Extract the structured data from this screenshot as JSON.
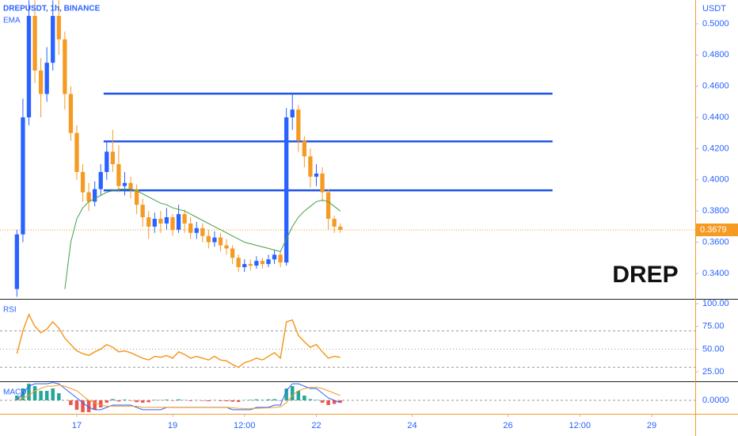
{
  "header": {
    "indicator": "EMA",
    "currency": "USDT"
  },
  "watermark": "DREP",
  "chart_data": [
    {
      "type": "candlestick",
      "title": "DREPUSDT, 1h, BINANCE",
      "x": [
        15.75,
        15.875,
        16,
        16.125,
        16.25,
        16.375,
        16.5,
        16.625,
        16.75,
        16.875,
        17,
        17.125,
        17.25,
        17.375,
        17.5,
        17.625,
        17.75,
        17.875,
        18,
        18.125,
        18.25,
        18.375,
        18.5,
        18.625,
        18.75,
        18.875,
        19,
        19.125,
        19.25,
        19.375,
        19.5,
        19.625,
        19.75,
        19.875,
        20,
        20.125,
        20.25,
        20.375,
        20.5,
        20.625,
        20.75,
        20.875,
        21,
        21.125,
        21.25,
        21.375,
        21.5,
        21.625,
        21.75,
        21.875,
        22,
        22.125,
        22.25,
        22.375,
        22.5
      ],
      "open": [
        0.33,
        0.365,
        0.44,
        0.505,
        0.47,
        0.455,
        0.475,
        0.505,
        0.49,
        0.455,
        0.43,
        0.405,
        0.392,
        0.386,
        0.394,
        0.405,
        0.418,
        0.41,
        0.396,
        0.398,
        0.394,
        0.384,
        0.376,
        0.37,
        0.375,
        0.372,
        0.376,
        0.368,
        0.378,
        0.372,
        0.366,
        0.369,
        0.364,
        0.36,
        0.363,
        0.358,
        0.356,
        0.35,
        0.344,
        0.346,
        0.345,
        0.348,
        0.346,
        0.349,
        0.352,
        0.347,
        0.44,
        0.445,
        0.425,
        0.415,
        0.402,
        0.404,
        0.392,
        0.375,
        0.37
      ],
      "high": [
        0.368,
        0.452,
        0.515,
        0.515,
        0.478,
        0.485,
        0.515,
        0.515,
        0.495,
        0.46,
        0.435,
        0.41,
        0.398,
        0.399,
        0.41,
        0.425,
        0.432,
        0.422,
        0.405,
        0.402,
        0.397,
        0.388,
        0.38,
        0.379,
        0.38,
        0.382,
        0.378,
        0.384,
        0.381,
        0.376,
        0.373,
        0.372,
        0.368,
        0.367,
        0.366,
        0.362,
        0.358,
        0.352,
        0.349,
        0.349,
        0.351,
        0.35,
        0.352,
        0.355,
        0.354,
        0.446,
        0.455,
        0.448,
        0.428,
        0.42,
        0.41,
        0.408,
        0.394,
        0.377,
        0.372
      ],
      "low": [
        0.325,
        0.36,
        0.435,
        0.462,
        0.44,
        0.45,
        0.47,
        0.48,
        0.445,
        0.425,
        0.4,
        0.386,
        0.38,
        0.383,
        0.39,
        0.4,
        0.405,
        0.392,
        0.39,
        0.388,
        0.378,
        0.37,
        0.362,
        0.366,
        0.366,
        0.368,
        0.364,
        0.366,
        0.366,
        0.362,
        0.362,
        0.36,
        0.356,
        0.357,
        0.354,
        0.352,
        0.346,
        0.341,
        0.341,
        0.342,
        0.343,
        0.343,
        0.344,
        0.346,
        0.344,
        0.345,
        0.432,
        0.418,
        0.408,
        0.395,
        0.396,
        0.386,
        0.368,
        0.366,
        0.366
      ],
      "close": [
        0.365,
        0.44,
        0.505,
        0.47,
        0.455,
        0.475,
        0.505,
        0.49,
        0.455,
        0.43,
        0.405,
        0.392,
        0.386,
        0.394,
        0.405,
        0.418,
        0.41,
        0.396,
        0.398,
        0.394,
        0.384,
        0.376,
        0.37,
        0.375,
        0.372,
        0.376,
        0.368,
        0.378,
        0.372,
        0.366,
        0.369,
        0.364,
        0.36,
        0.363,
        0.358,
        0.356,
        0.35,
        0.344,
        0.346,
        0.345,
        0.348,
        0.346,
        0.349,
        0.352,
        0.347,
        0.44,
        0.445,
        0.425,
        0.415,
        0.402,
        0.404,
        0.392,
        0.375,
        0.37,
        0.3679
      ],
      "up_color": "#2962ff",
      "down_color": "#f59a23",
      "series": [
        {
          "name": "EMA",
          "color": "#43a047",
          "values": [
            null,
            null,
            null,
            null,
            null,
            null,
            null,
            null,
            0.33,
            0.36,
            0.375,
            0.382,
            0.386,
            0.388,
            0.39,
            0.392,
            0.393,
            0.394,
            0.394,
            0.394,
            0.393,
            0.391,
            0.389,
            0.387,
            0.385,
            0.384,
            0.382,
            0.381,
            0.38,
            0.378,
            0.376,
            0.374,
            0.372,
            0.37,
            0.368,
            0.366,
            0.364,
            0.362,
            0.36,
            0.359,
            0.358,
            0.357,
            0.356,
            0.355,
            0.354,
            0.362,
            0.37,
            0.376,
            0.38,
            0.383,
            0.386,
            0.387,
            0.386,
            0.383,
            0.38
          ]
        }
      ],
      "levels": [
        {
          "value": 0.4552,
          "x": [
            17.56,
            26.93
          ]
        },
        {
          "value": 0.4246,
          "x": [
            17.56,
            26.93
          ]
        },
        {
          "value": 0.3932,
          "x": [
            17.56,
            26.93
          ]
        }
      ],
      "level_color": "#1e53e5",
      "last_price": 0.3679,
      "last_price_color": "#f59a23",
      "xlim": [
        15.397,
        29.909
      ],
      "xticks": [
        17,
        19,
        {
          "value": 20.5,
          "label": "12:00"
        },
        22,
        24,
        26,
        {
          "value": 27.5,
          "label": "12:00"
        },
        29
      ],
      "ylim": [
        0.3237,
        0.5152
      ],
      "yticks": [
        {
          "value": 0.34,
          "label": "0.3400"
        },
        {
          "value": 0.36,
          "label": "0.3600"
        },
        {
          "value": 0.38,
          "label": "0.3800"
        },
        {
          "value": 0.4,
          "label": "0.4000"
        },
        {
          "value": 0.42,
          "label": "0.4200"
        },
        {
          "value": 0.44,
          "label": "0.4400"
        },
        {
          "value": 0.46,
          "label": "0.4600"
        },
        {
          "value": 0.48,
          "label": "0.4800"
        },
        {
          "value": 0.5,
          "label": "0.5000"
        }
      ]
    },
    {
      "type": "line",
      "title": "RSI",
      "color": "#f59a23",
      "x": [
        15.75,
        15.875,
        16,
        16.125,
        16.25,
        16.375,
        16.5,
        16.625,
        16.75,
        16.875,
        17,
        17.125,
        17.25,
        17.375,
        17.5,
        17.625,
        17.75,
        17.875,
        18,
        18.125,
        18.25,
        18.375,
        18.5,
        18.625,
        18.75,
        18.875,
        19,
        19.125,
        19.25,
        19.375,
        19.5,
        19.625,
        19.75,
        19.875,
        20,
        20.125,
        20.25,
        20.375,
        20.5,
        20.625,
        20.75,
        20.875,
        21,
        21.125,
        21.25,
        21.375,
        21.5,
        21.625,
        21.75,
        21.875,
        22,
        22.125,
        22.25,
        22.375,
        22.5
      ],
      "values": [
        45,
        70,
        88,
        75,
        68,
        72,
        80,
        73,
        62,
        55,
        48,
        45,
        43,
        47,
        50,
        55,
        52,
        47,
        48,
        46,
        43,
        40,
        38,
        42,
        41,
        43,
        40,
        47,
        44,
        40,
        42,
        40,
        38,
        42,
        38,
        37,
        33,
        30,
        35,
        37,
        40,
        38,
        42,
        46,
        40,
        80,
        82,
        65,
        58,
        52,
        55,
        47,
        40,
        42,
        41
      ],
      "bands": [
        30,
        50,
        70
      ],
      "xlim": [
        15.397,
        29.909
      ],
      "ylim": [
        15.4,
        104.4
      ],
      "yticks": [
        {
          "value": 25,
          "label": "25.00"
        },
        {
          "value": 50,
          "label": "50.00"
        },
        {
          "value": 75,
          "label": "75.00"
        },
        {
          "value": 100,
          "label": "100.00"
        }
      ]
    },
    {
      "type": "macd",
      "title": "MACD",
      "x": [
        15.75,
        15.875,
        16,
        16.125,
        16.25,
        16.375,
        16.5,
        16.625,
        16.75,
        16.875,
        17,
        17.125,
        17.25,
        17.375,
        17.5,
        17.625,
        17.75,
        17.875,
        18,
        18.125,
        18.25,
        18.375,
        18.5,
        18.625,
        18.75,
        18.875,
        19,
        19.125,
        19.25,
        19.375,
        19.5,
        19.625,
        19.75,
        19.875,
        20,
        20.125,
        20.25,
        20.375,
        20.5,
        20.625,
        20.75,
        20.875,
        21,
        21.125,
        21.25,
        21.375,
        21.5,
        21.625,
        21.75,
        21.875,
        22,
        22.125,
        22.25,
        22.375,
        22.5
      ],
      "histogram": [
        0.002,
        0.005,
        0.007,
        0.006,
        0.004,
        0.004,
        0.005,
        0.003,
        0.0,
        -0.002,
        -0.004,
        -0.005,
        -0.005,
        -0.004,
        -0.003,
        -0.001,
        0.0005,
        -0.0005,
        0.0003,
        -0.0002,
        -0.0008,
        -0.001,
        -0.0008,
        0.0002,
        0.0001,
        0.0003,
        -0.0002,
        0.0004,
        0.0001,
        -0.0003,
        0.0001,
        -0.0002,
        -0.0004,
        0.0001,
        -0.0003,
        -0.0004,
        -0.0006,
        -0.0007,
        0.0001,
        0.0002,
        0.0004,
        0.0002,
        0.0004,
        0.0005,
        -0.0002,
        0.005,
        0.006,
        0.004,
        0.002,
        0.0005,
        0.0002,
        -0.001,
        -0.002,
        -0.0015,
        -0.001
      ],
      "histogram_colors": [
        "#26a69a",
        "#ef5350"
      ],
      "macd_line": [
        0.0,
        0.003,
        0.006,
        0.007,
        0.007,
        0.007,
        0.0075,
        0.007,
        0.005,
        0.003,
        0.001,
        -0.001,
        -0.003,
        -0.004,
        -0.004,
        -0.003,
        -0.002,
        -0.002,
        -0.002,
        -0.002,
        -0.003,
        -0.004,
        -0.004,
        -0.004,
        -0.004,
        -0.003,
        -0.003,
        -0.003,
        -0.003,
        -0.003,
        -0.003,
        -0.003,
        -0.003,
        -0.003,
        -0.003,
        -0.003,
        -0.004,
        -0.004,
        -0.004,
        -0.004,
        -0.003,
        -0.003,
        -0.003,
        -0.002,
        -0.002,
        0.004,
        0.007,
        0.007,
        0.006,
        0.005,
        0.005,
        0.003,
        0.001,
        0.0,
        -0.001
      ],
      "macd_color": "#2962ff",
      "signal_line": [
        0.0,
        0.001,
        0.002,
        0.004,
        0.005,
        0.006,
        0.006,
        0.0065,
        0.006,
        0.005,
        0.004,
        0.002,
        0.0,
        -0.001,
        -0.002,
        -0.0025,
        -0.0025,
        -0.0025,
        -0.0025,
        -0.0025,
        -0.0025,
        -0.003,
        -0.003,
        -0.003,
        -0.003,
        -0.003,
        -0.003,
        -0.003,
        -0.003,
        -0.003,
        -0.003,
        -0.003,
        -0.003,
        -0.003,
        -0.003,
        -0.003,
        -0.0032,
        -0.0034,
        -0.0035,
        -0.0035,
        -0.0034,
        -0.0033,
        -0.0032,
        -0.003,
        -0.0028,
        -0.001,
        0.002,
        0.004,
        0.005,
        0.0055,
        0.0055,
        0.005,
        0.004,
        0.003,
        0.002
      ],
      "signal_color": "#f59a23",
      "xlim": [
        15.397,
        29.909
      ],
      "ylim": [
        -0.0057,
        0.0077
      ],
      "yticks": [
        {
          "value": 0,
          "label": "0.0000"
        }
      ]
    }
  ]
}
